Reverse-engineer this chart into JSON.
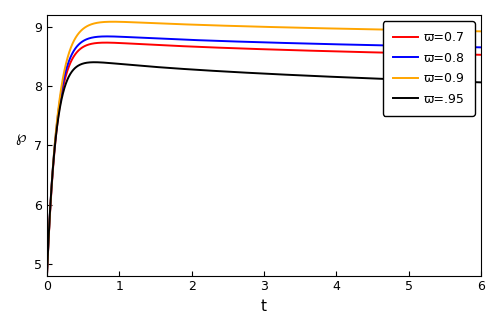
{
  "title": "",
  "xlabel": "t",
  "ylabel": "℘",
  "xlim": [
    0,
    6
  ],
  "ylim": [
    4.8,
    9.2
  ],
  "yticks": [
    5,
    6,
    7,
    8,
    9
  ],
  "xticks": [
    0,
    1,
    2,
    3,
    4,
    5,
    6
  ],
  "curves": [
    {
      "varpi": 0.7,
      "color": "red",
      "label": "ϖ=0.7",
      "A": 4.1,
      "b": 7.0,
      "c": 0.055,
      "pw": 0.38
    },
    {
      "varpi": 0.8,
      "color": "blue",
      "label": "ϖ=0.8",
      "A": 4.2,
      "b": 7.0,
      "c": 0.052,
      "pw": 0.36
    },
    {
      "varpi": 0.9,
      "color": "orange",
      "label": "ϖ=0.9",
      "A": 4.45,
      "b": 6.5,
      "c": 0.048,
      "pw": 0.34
    },
    {
      "varpi": 0.95,
      "color": "black",
      "label": "ϖ=.95",
      "A": 3.8,
      "b": 8.0,
      "c": 0.075,
      "pw": 0.45
    }
  ],
  "legend_loc": "upper right",
  "bg_color": "#ffffff",
  "line_width": 1.4
}
